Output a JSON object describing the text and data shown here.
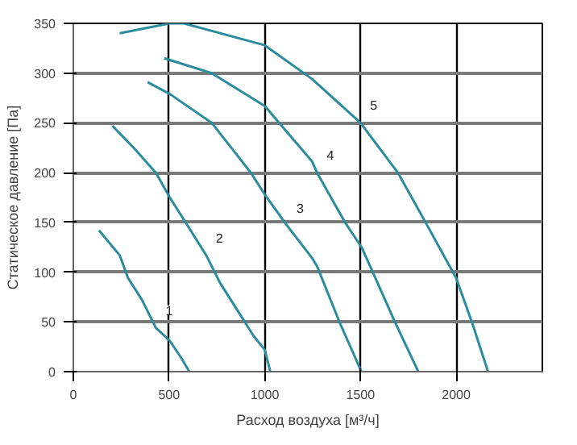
{
  "chart_data": {
    "type": "line",
    "xlabel": "Расход воздуха [м³/ч]",
    "ylabel": "Статическое давление [Па]",
    "xlim": [
      0,
      2450
    ],
    "ylim": [
      0,
      350
    ],
    "xticks": [
      0,
      500,
      1000,
      1500,
      2000
    ],
    "yticks": [
      0,
      50,
      100,
      150,
      200,
      250,
      300,
      350
    ],
    "grid": true,
    "marker": "none",
    "line_style": "solid",
    "series": [
      {
        "name": "1",
        "color": "#2a8c9c",
        "x": [
          134,
          242,
          286,
          359,
          431,
          504,
          563,
          606
        ],
        "values": [
          142,
          117,
          94,
          72,
          44,
          31,
          14,
          0
        ]
      },
      {
        "name": "2",
        "color": "#2a8c9c",
        "x": [
          204,
          315,
          431,
          504,
          606,
          694,
          767,
          869,
          941,
          1000,
          1029
        ],
        "values": [
          247,
          225,
          200,
          175,
          144,
          117,
          89,
          58,
          36,
          22,
          0
        ]
      },
      {
        "name": "3",
        "color": "#2a8c9c",
        "x": [
          388,
          504,
          723,
          927,
          1000,
          1116,
          1248,
          1273,
          1390,
          1505
        ],
        "values": [
          291,
          279,
          250,
          200,
          178,
          147,
          114,
          106,
          50,
          0
        ]
      },
      {
        "name": "4",
        "color": "#2a8c9c",
        "x": [
          475,
          723,
          1000,
          1248,
          1273,
          1419,
          1506,
          1680,
          1802
        ],
        "values": [
          315,
          300,
          267,
          211,
          200,
          150,
          125,
          50,
          0
        ]
      },
      {
        "name": "5",
        "color": "#2a8c9c",
        "x": [
          242,
          504,
          577,
          1000,
          1248,
          1500,
          1695,
          1840,
          2000,
          2087,
          2166
        ],
        "values": [
          340,
          350,
          350,
          328,
          294,
          250,
          200,
          150,
          94,
          47,
          0
        ]
      }
    ]
  }
}
